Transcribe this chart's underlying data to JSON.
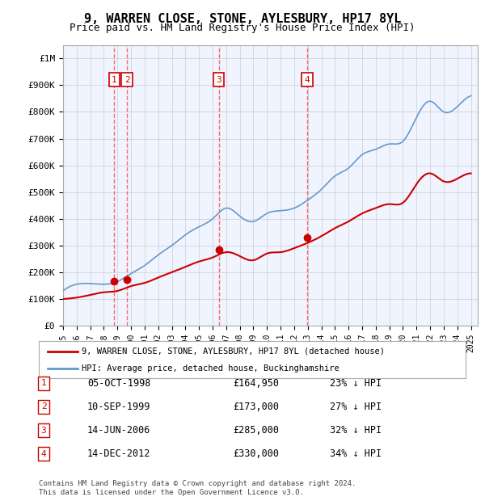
{
  "title": "9, WARREN CLOSE, STONE, AYLESBURY, HP17 8YL",
  "subtitle": "Price paid vs. HM Land Registry's House Price Index (HPI)",
  "ylabel_ticks": [
    "£0",
    "£100K",
    "£200K",
    "£300K",
    "£400K",
    "£500K",
    "£600K",
    "£700K",
    "£800K",
    "£900K",
    "£1M"
  ],
  "ylim": [
    0,
    1050000
  ],
  "xlim_start": 1995.0,
  "xlim_end": 2025.5,
  "sale_dates": [
    1998.76,
    1999.7,
    2006.45,
    2012.96
  ],
  "sale_prices": [
    164950,
    173000,
    285000,
    330000
  ],
  "sale_labels": [
    "1",
    "2",
    "3",
    "4"
  ],
  "sale_info": [
    {
      "num": "1",
      "date": "05-OCT-1998",
      "price": "£164,950",
      "pct": "23% ↓ HPI"
    },
    {
      "num": "2",
      "date": "10-SEP-1999",
      "price": "£173,000",
      "pct": "27% ↓ HPI"
    },
    {
      "num": "3",
      "date": "14-JUN-2006",
      "price": "£285,000",
      "pct": "32% ↓ HPI"
    },
    {
      "num": "4",
      "date": "14-DEC-2012",
      "price": "£330,000",
      "pct": "34% ↓ HPI"
    }
  ],
  "legend_label_red": "9, WARREN CLOSE, STONE, AYLESBURY, HP17 8YL (detached house)",
  "legend_label_blue": "HPI: Average price, detached house, Buckinghamshire",
  "footer": "Contains HM Land Registry data © Crown copyright and database right 2024.\nThis data is licensed under the Open Government Licence v3.0.",
  "background_color": "#ffffff",
  "plot_bg_color": "#f0f4ff",
  "grid_color": "#cccccc",
  "red_line_color": "#cc0000",
  "blue_line_color": "#6699cc",
  "sale_dot_color": "#cc0000",
  "vline_color": "#ff4444",
  "box_color": "#cc0000"
}
